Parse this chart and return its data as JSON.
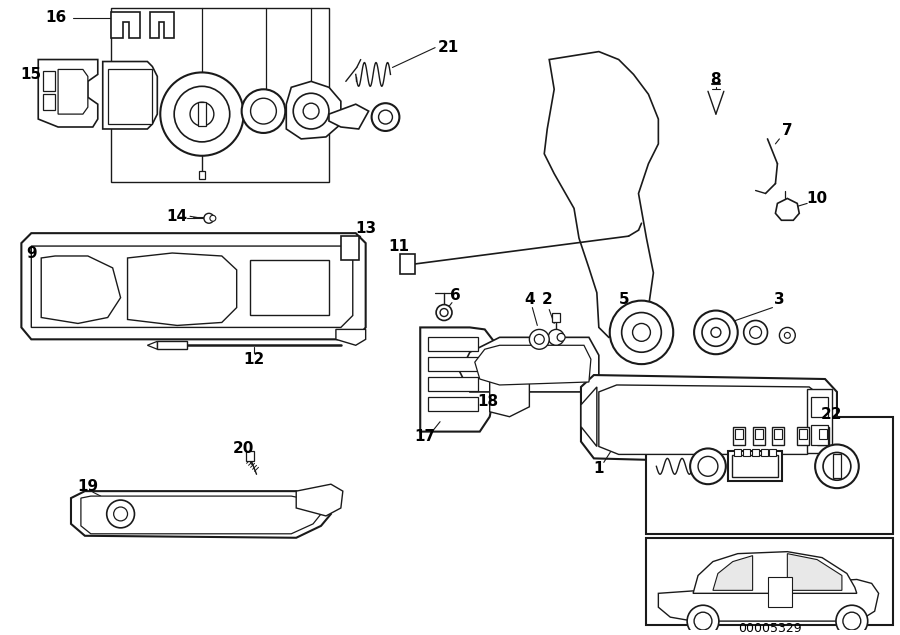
{
  "bg_color": "#ffffff",
  "line_color": "#1a1a1a",
  "text_color": "#000000",
  "diagram_code": "00005329",
  "figsize": [
    9.0,
    6.35
  ],
  "dpi": 100
}
